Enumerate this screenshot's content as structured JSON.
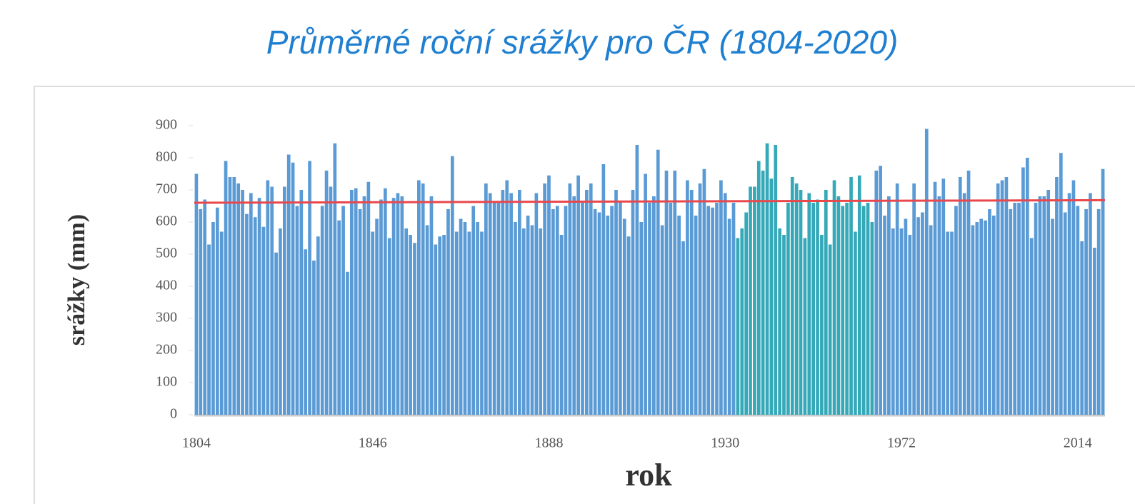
{
  "chart_data": {
    "type": "bar",
    "title": "Průměrné roční srážky pro ČR (1804-2020)",
    "x_label": "rok",
    "y_label": "srážky (mm)",
    "categories": [
      "1804",
      null,
      null,
      null,
      null,
      null,
      null,
      null,
      null,
      null,
      null,
      null,
      null,
      null,
      null,
      null,
      null,
      null,
      null,
      null,
      null,
      null,
      null,
      null,
      null,
      null,
      null,
      null,
      null,
      null,
      null,
      null,
      null,
      null,
      null,
      null,
      null,
      null,
      null,
      null,
      null,
      null,
      "1846",
      null,
      null,
      null,
      null,
      null,
      null,
      null,
      null,
      null,
      null,
      null,
      null,
      null,
      null,
      null,
      null,
      null,
      null,
      null,
      null,
      null,
      null,
      null,
      null,
      null,
      null,
      null,
      null,
      null,
      null,
      null,
      null,
      null,
      null,
      null,
      null,
      null,
      null,
      null,
      null,
      null,
      "1888",
      null,
      null,
      null,
      null,
      null,
      null,
      null,
      null,
      null,
      null,
      null,
      null,
      null,
      null,
      null,
      null,
      null,
      null,
      null,
      null,
      null,
      null,
      null,
      null,
      null,
      null,
      null,
      null,
      null,
      null,
      null,
      null,
      null,
      null,
      null,
      null,
      null,
      null,
      null,
      null,
      null,
      "1930",
      null,
      null,
      null,
      null,
      null,
      null,
      null,
      null,
      null,
      null,
      null,
      null,
      null,
      null,
      null,
      null,
      null,
      null,
      null,
      null,
      null,
      null,
      null,
      null,
      null,
      null,
      null,
      null,
      null,
      null,
      null,
      null,
      null,
      null,
      null,
      null,
      null,
      null,
      null,
      null,
      null,
      "1972",
      null,
      null,
      null,
      null,
      null,
      null,
      null,
      null,
      null,
      null,
      null,
      null,
      null,
      null,
      null,
      null,
      null,
      null,
      null,
      null,
      null,
      null,
      null,
      null,
      null,
      null,
      null,
      null,
      null,
      null,
      null,
      null,
      null,
      null,
      null,
      null,
      null,
      null,
      null,
      null,
      null,
      "2014",
      null,
      null,
      null,
      null,
      null,
      null
    ],
    "series": [
      {
        "color": "#5b9bd5",
        "values": [
          750,
          640,
          670,
          530,
          600,
          645,
          570,
          790,
          740,
          740,
          720,
          700,
          625,
          690,
          615,
          675,
          585,
          730,
          710,
          505,
          580,
          710,
          810,
          785,
          650,
          700,
          515,
          790,
          480,
          555,
          650,
          760,
          710,
          845,
          605,
          650,
          445,
          700,
          705,
          640,
          680,
          725,
          570,
          610,
          670,
          705,
          550,
          675,
          690,
          680,
          580,
          560,
          535,
          730,
          720,
          590,
          680,
          530,
          555,
          560,
          640,
          805,
          570,
          610,
          600,
          570,
          650,
          600,
          570,
          720,
          690,
          660,
          660,
          700,
          730,
          690,
          600,
          700,
          580,
          620,
          590,
          690,
          580,
          720,
          745,
          640,
          650,
          560,
          650,
          720,
          680,
          745,
          660,
          700,
          720,
          640,
          630,
          780,
          620,
          650,
          700,
          665,
          610,
          555,
          700,
          840,
          600,
          750,
          660,
          680,
          825,
          590,
          760,
          660,
          760,
          620,
          540,
          730,
          700,
          620,
          720,
          765,
          650,
          645,
          660,
          730,
          690,
          610,
          660,
          null,
          null,
          null,
          null,
          null,
          null,
          null,
          null,
          null,
          null,
          null,
          null,
          null,
          null,
          null,
          null,
          null,
          null,
          null,
          null,
          null,
          null,
          null,
          null,
          null,
          null,
          null,
          null,
          null,
          null,
          null,
          null,
          null,
          760,
          775,
          620,
          680,
          580,
          720,
          580,
          610,
          560,
          720,
          615,
          630,
          890,
          590,
          725,
          680,
          735,
          570,
          570,
          650,
          740,
          690,
          760,
          590,
          600,
          610,
          605,
          640,
          620,
          720,
          730,
          740,
          640,
          660,
          660,
          770,
          800,
          550,
          660,
          680,
          680,
          700,
          610,
          740,
          815,
          630,
          690,
          730,
          650,
          540,
          640,
          690,
          520,
          640,
          765
        ]
      },
      {
        "color": "#36a9b9",
        "values": [
          null,
          null,
          null,
          null,
          null,
          null,
          null,
          null,
          null,
          null,
          null,
          null,
          null,
          null,
          null,
          null,
          null,
          null,
          null,
          null,
          null,
          null,
          null,
          null,
          null,
          null,
          null,
          null,
          null,
          null,
          null,
          null,
          null,
          null,
          null,
          null,
          null,
          null,
          null,
          null,
          null,
          null,
          null,
          null,
          null,
          null,
          null,
          null,
          null,
          null,
          null,
          null,
          null,
          null,
          null,
          null,
          null,
          null,
          null,
          null,
          null,
          null,
          null,
          null,
          null,
          null,
          null,
          null,
          null,
          null,
          null,
          null,
          null,
          null,
          null,
          null,
          null,
          null,
          null,
          null,
          null,
          null,
          null,
          null,
          null,
          null,
          null,
          null,
          null,
          null,
          null,
          null,
          null,
          null,
          null,
          null,
          null,
          null,
          null,
          null,
          null,
          null,
          null,
          null,
          null,
          null,
          null,
          null,
          null,
          null,
          null,
          null,
          null,
          null,
          null,
          null,
          null,
          null,
          null,
          null,
          null,
          null,
          null,
          null,
          null,
          null,
          null,
          null,
          null,
          550,
          580,
          630,
          710,
          710,
          790,
          760,
          845,
          735,
          840,
          580,
          560,
          660,
          740,
          720,
          700,
          550,
          690,
          660,
          670,
          560,
          700,
          530,
          730,
          680,
          650,
          660,
          740,
          570,
          745,
          650,
          660,
          600,
          null,
          null,
          null,
          null,
          null,
          null,
          null,
          null,
          null,
          null,
          null,
          null,
          null,
          null,
          null,
          null,
          null,
          null,
          null,
          null,
          null,
          null,
          null,
          null,
          null,
          null,
          null,
          null,
          null,
          null,
          null,
          null,
          null,
          null,
          null,
          null,
          null,
          null,
          null,
          null,
          null,
          null,
          null,
          null,
          null,
          null,
          null,
          null,
          null,
          null,
          null,
          null,
          null,
          null,
          null
        ]
      }
    ],
    "mean_line": {
      "values": [
        660,
        668
      ],
      "color": "#e8474c"
    },
    "ylim": [
      0,
      900
    ],
    "yticks": [
      0,
      100,
      200,
      300,
      400,
      500,
      600,
      700,
      800,
      900
    ]
  }
}
